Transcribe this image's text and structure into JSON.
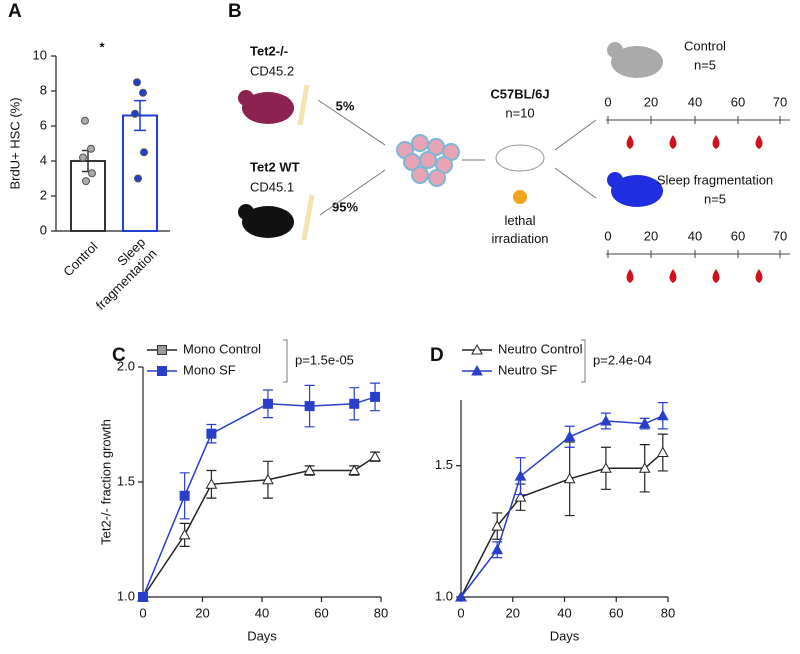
{
  "chart_data": [
    {
      "panel": "A",
      "type": "bar",
      "ylabel": "BrdU+ HSC (%)",
      "annotation": "*",
      "categories": [
        "Control",
        "Sleep fragmentation"
      ],
      "values": [
        4.0,
        6.6
      ],
      "errors": [
        0.6,
        0.85
      ],
      "colors": [
        "#333333",
        "#1f3fd0"
      ],
      "point_color": "#555555",
      "points": [
        [
          6.3,
          4.7,
          4.2,
          3.3,
          2.85
        ],
        [
          8.5,
          7.9,
          6.7,
          4.5,
          3.0
        ]
      ],
      "ylim": [
        0,
        10
      ],
      "yticks": [
        0,
        2,
        4,
        6,
        8,
        10
      ]
    },
    {
      "panel": "C",
      "type": "line",
      "xlabel": "Days",
      "ylabel": "Tet2-/- fraction growth",
      "annotation": "p=1.5e-05",
      "x": [
        0,
        14,
        23,
        42,
        56,
        71,
        78
      ],
      "series": [
        {
          "name": "Mono Control",
          "color": "#222222",
          "marker": "triangle",
          "legend_marker": "square-gray",
          "values": [
            1.0,
            1.27,
            1.49,
            1.51,
            1.55,
            1.55,
            1.61
          ],
          "errors": [
            null,
            0.05,
            0.06,
            0.08,
            0.02,
            0.02,
            0.02
          ]
        },
        {
          "name": "Mono SF",
          "color": "#2a3fc9",
          "marker": "square",
          "values": [
            1.0,
            1.44,
            1.71,
            1.84,
            1.83,
            1.84,
            1.87
          ],
          "errors": [
            null,
            0.1,
            0.04,
            0.06,
            0.09,
            0.07,
            0.06
          ]
        }
      ],
      "xlim": [
        0,
        80
      ],
      "xticks": [
        0,
        20,
        40,
        60,
        80
      ],
      "ylim": [
        1.0,
        2.0
      ],
      "yticks": [
        {
          "value": 1.0,
          "label": "1.0"
        },
        {
          "value": 1.5,
          "label": "1.5"
        },
        {
          "value": 2.0,
          "label": "2.0"
        }
      ]
    },
    {
      "panel": "D",
      "type": "line",
      "xlabel": "Days",
      "annotation": "p=2.4e-04",
      "x": [
        0,
        14,
        23,
        42,
        56,
        71,
        78
      ],
      "series": [
        {
          "name": "Neutro Control",
          "color": "#222222",
          "marker": "triangle",
          "values": [
            1.0,
            1.27,
            1.38,
            1.45,
            1.49,
            1.49,
            1.55
          ],
          "errors": [
            null,
            0.05,
            0.05,
            0.14,
            0.08,
            0.09,
            0.07
          ]
        },
        {
          "name": "Neutro SF",
          "color": "#2a3fc9",
          "marker": "triangle-filled",
          "values": [
            1.0,
            1.18,
            1.46,
            1.61,
            1.67,
            1.66,
            1.69
          ],
          "errors": [
            null,
            0.03,
            0.07,
            0.04,
            0.03,
            0.02,
            0.05
          ]
        }
      ],
      "xlim": [
        0,
        80
      ],
      "xticks": [
        0,
        20,
        40,
        60,
        80
      ],
      "ylim": [
        1.0,
        1.75
      ],
      "yticks": [
        {
          "value": 1.0,
          "label": "1.0"
        },
        {
          "value": 1.5,
          "label": "1.5"
        }
      ]
    }
  ],
  "diagram": {
    "panel": "B",
    "donor_ko": {
      "strain": "Tet2-/-",
      "marker": "CD45.2",
      "fraction": "5%"
    },
    "donor_wt": {
      "strain": "Tet2 WT",
      "marker": "CD45.1",
      "fraction": "95%"
    },
    "recipient": {
      "strain": "C57BL/6J",
      "n": "n=10",
      "treatment": "lethal irradiation"
    },
    "group_control": {
      "name": "Control",
      "n": "n=5"
    },
    "group_sf": {
      "name": "Sleep fragmentation",
      "n": "n=5"
    },
    "timeline_ticks": [
      "0",
      "20",
      "40",
      "60",
      "70"
    ]
  }
}
